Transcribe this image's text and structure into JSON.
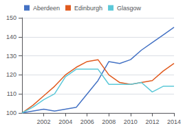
{
  "chart_data": {
    "type": "line",
    "x": [
      2000,
      2001,
      2002,
      2003,
      2004,
      2005,
      2006,
      2007,
      2008,
      2009,
      2010,
      2011,
      2012,
      2013,
      2014
    ],
    "series": [
      {
        "name": "Aberdeen",
        "color": "#4472c4",
        "values": [
          100,
          101,
          102,
          101,
          102,
          103,
          110,
          117,
          127,
          126,
          128,
          133,
          137,
          141,
          145
        ]
      },
      {
        "name": "Edinburgh",
        "color": "#e05a1e",
        "values": [
          100,
          104,
          109,
          114,
          120,
          124,
          127,
          128,
          120,
          116,
          115,
          116,
          117,
          122,
          126
        ]
      },
      {
        "name": "Glasgow",
        "color": "#5bc8d8",
        "values": [
          100,
          103,
          107,
          110,
          119,
          123,
          123,
          123,
          115,
          115,
          115,
          116,
          111,
          114,
          114
        ]
      }
    ],
    "xlim": [
      2000,
      2014
    ],
    "xticks": [
      2002,
      2004,
      2006,
      2008,
      2010,
      2012,
      2014
    ],
    "ylim": [
      100,
      150
    ],
    "yticks": [
      100,
      110,
      120,
      130,
      140,
      150
    ],
    "grid": true,
    "legend": "upper left"
  }
}
